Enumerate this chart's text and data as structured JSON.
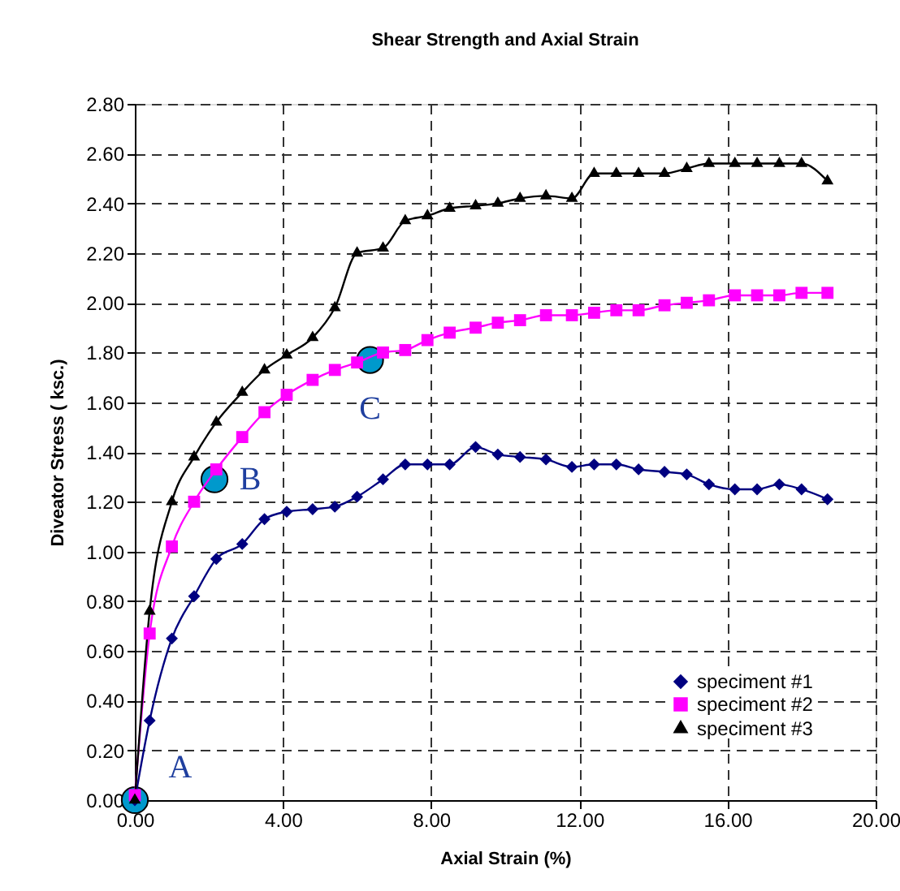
{
  "chart_data": {
    "type": "line",
    "title": "Shear Strength and Axial Strain",
    "xlabel": "Axial Strain (%)",
    "ylabel": "Diveator Stress ( ksc.)",
    "x": [
      0,
      0.4,
      1.0,
      1.6,
      2.2,
      2.9,
      3.5,
      4.1,
      4.8,
      5.4,
      6.0,
      6.7,
      7.3,
      7.9,
      8.5,
      9.2,
      9.8,
      10.4,
      11.1,
      11.8,
      12.4,
      13.0,
      13.6,
      14.3,
      14.9,
      15.5,
      16.2,
      16.8,
      17.4,
      18.0,
      18.7
    ],
    "series": [
      {
        "name": "speciment #1",
        "color": "#000080",
        "marker": "diamond",
        "values": [
          0,
          0.32,
          0.65,
          0.82,
          0.97,
          1.03,
          1.13,
          1.16,
          1.17,
          1.18,
          1.22,
          1.29,
          1.35,
          1.35,
          1.35,
          1.42,
          1.39,
          1.38,
          1.37,
          1.34,
          1.35,
          1.35,
          1.33,
          1.32,
          1.31,
          1.27,
          1.25,
          1.25,
          1.27,
          1.25,
          1.21
        ]
      },
      {
        "name": "speciment #2",
        "color": "#ff00ff",
        "marker": "square",
        "values": [
          0.02,
          0.67,
          1.02,
          1.2,
          1.33,
          1.46,
          1.56,
          1.63,
          1.69,
          1.73,
          1.76,
          1.8,
          1.81,
          1.85,
          1.88,
          1.9,
          1.92,
          1.93,
          1.95,
          1.95,
          1.96,
          1.97,
          1.97,
          1.99,
          2.0,
          2.01,
          2.03,
          2.03,
          2.03,
          2.04,
          2.04
        ]
      },
      {
        "name": "speciment #3",
        "color": "#000000",
        "marker": "triangle",
        "values": [
          0,
          0.76,
          1.2,
          1.38,
          1.52,
          1.64,
          1.73,
          1.79,
          1.86,
          1.98,
          2.2,
          2.22,
          2.33,
          2.35,
          2.38,
          2.39,
          2.4,
          2.42,
          2.43,
          2.42,
          2.52,
          2.52,
          2.52,
          2.52,
          2.54,
          2.56,
          2.56,
          2.56,
          2.56,
          2.56,
          2.49
        ]
      }
    ],
    "annotations": [
      {
        "text": "A",
        "x": 0,
        "y": 0
      },
      {
        "text": "B",
        "x": 2.15,
        "y": 1.29
      },
      {
        "text": "C",
        "x": 6.35,
        "y": 1.77
      }
    ],
    "xlim": [
      0,
      20
    ],
    "ylim": [
      0,
      2.8
    ],
    "xticks": [
      {
        "value": 0,
        "label": "0.00"
      },
      {
        "value": 4,
        "label": "4.00"
      },
      {
        "value": 8,
        "label": "8.00"
      },
      {
        "value": 12,
        "label": "12.00"
      },
      {
        "value": 16,
        "label": "16.00"
      },
      {
        "value": 20,
        "label": "20.00"
      }
    ],
    "yticks": [
      {
        "value": 0,
        "label": "0.00"
      },
      {
        "value": 0.2,
        "label": "0.20"
      },
      {
        "value": 0.4,
        "label": "0.40"
      },
      {
        "value": 0.6,
        "label": "0.60"
      },
      {
        "value": 0.8,
        "label": "0.80"
      },
      {
        "value": 1.0,
        "label": "1.00"
      },
      {
        "value": 1.2,
        "label": "1.20"
      },
      {
        "value": 1.4,
        "label": "1.40"
      },
      {
        "value": 1.6,
        "label": "1.60"
      },
      {
        "value": 1.8,
        "label": "1.80"
      },
      {
        "value": 2.0,
        "label": "2.00"
      },
      {
        "value": 2.2,
        "label": "2.20"
      },
      {
        "value": 2.4,
        "label": "2.40"
      },
      {
        "value": 2.6,
        "label": "2.60"
      },
      {
        "value": 2.8,
        "label": "2.80"
      }
    ],
    "grid": true,
    "legend": "bottom right",
    "line_style": "solid"
  }
}
